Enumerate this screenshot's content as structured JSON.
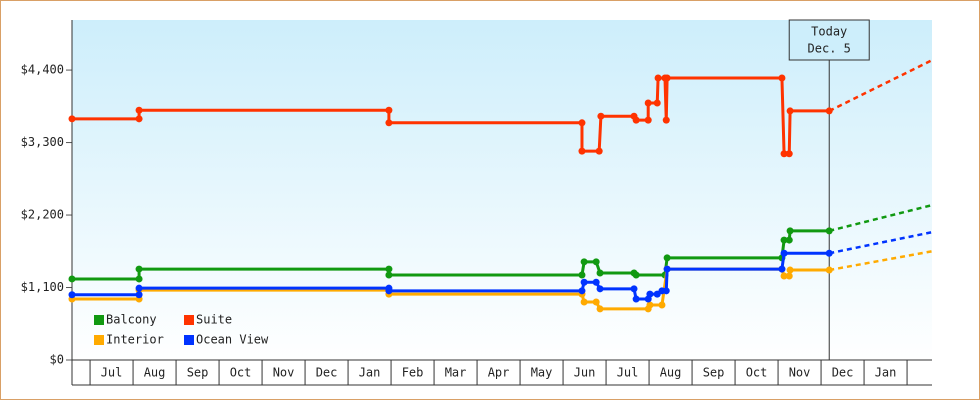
{
  "chart_data": {
    "type": "line",
    "step": true,
    "legend": "lower left",
    "background": [
      "#cdeefb",
      "#ffffff"
    ],
    "xlim": [
      -0.42,
      19.58
    ],
    "ylim": [
      0,
      5160
    ],
    "yticks": [
      {
        "value": 0,
        "label": "$0"
      },
      {
        "value": 1100,
        "label": "$1,100"
      },
      {
        "value": 2200,
        "label": "$2,200"
      },
      {
        "value": 3300,
        "label": "$3,300"
      },
      {
        "value": 4400,
        "label": "$4,400"
      }
    ],
    "xticks": [
      {
        "value": 0.5,
        "label": "Jul"
      },
      {
        "value": 1.5,
        "label": "Aug"
      },
      {
        "value": 2.5,
        "label": "Sep"
      },
      {
        "value": 3.5,
        "label": "Oct"
      },
      {
        "value": 4.5,
        "label": "Nov"
      },
      {
        "value": 5.5,
        "label": "Dec"
      },
      {
        "value": 6.5,
        "label": "Jan"
      },
      {
        "value": 7.5,
        "label": "Feb"
      },
      {
        "value": 8.5,
        "label": "Mar"
      },
      {
        "value": 9.5,
        "label": "Apr"
      },
      {
        "value": 10.5,
        "label": "May"
      },
      {
        "value": 11.5,
        "label": "Jun"
      },
      {
        "value": 12.5,
        "label": "Jul"
      },
      {
        "value": 13.5,
        "label": "Aug"
      },
      {
        "value": 14.5,
        "label": "Sep"
      },
      {
        "value": 15.5,
        "label": "Oct"
      },
      {
        "value": 16.5,
        "label": "Nov"
      },
      {
        "value": 17.5,
        "label": "Dec"
      },
      {
        "value": 18.5,
        "label": "Jan"
      }
    ],
    "annotation": {
      "x": 17.19,
      "lines": [
        "Today",
        "Dec. 5"
      ]
    },
    "series": [
      {
        "name": "Balcony",
        "color": "#119911",
        "x": [
          -0.42,
          1.14,
          1.14,
          6.95,
          6.95,
          11.44,
          11.49,
          11.77,
          11.86,
          12.65,
          12.7,
          13.37,
          13.42,
          16.09,
          16.14,
          16.26,
          16.28,
          17.19
        ],
        "values": [
          1230,
          1230,
          1380,
          1380,
          1290,
          1290,
          1490,
          1490,
          1320,
          1320,
          1290,
          1290,
          1550,
          1550,
          1820,
          1820,
          1960,
          1960
        ],
        "forecast": {
          "x": [
            17.19,
            19.58
          ],
          "values": [
            1960,
            2350
          ]
        }
      },
      {
        "name": "Suite",
        "color": "#ff3300",
        "x": [
          -0.42,
          1.14,
          1.14,
          6.95,
          6.95,
          11.44,
          11.44,
          11.84,
          11.88,
          12.65,
          12.7,
          12.98,
          12.98,
          13.19,
          13.21,
          13.37,
          13.4,
          13.42,
          16.09,
          16.14,
          16.26,
          16.28,
          17.19
        ],
        "values": [
          3660,
          3660,
          3790,
          3790,
          3600,
          3600,
          3170,
          3170,
          3700,
          3700,
          3640,
          3640,
          3900,
          3900,
          4280,
          4280,
          3640,
          4280,
          4280,
          3130,
          3130,
          3780,
          3780
        ],
        "forecast": {
          "x": [
            17.19,
            19.58
          ],
          "values": [
            3780,
            4550
          ]
        }
      },
      {
        "name": "Interior",
        "color": "#ffaa00",
        "x": [
          -0.42,
          1.14,
          1.14,
          6.95,
          6.95,
          11.44,
          11.49,
          11.77,
          11.86,
          12.98,
          13.02,
          13.3,
          13.42,
          16.09,
          16.14,
          16.26,
          16.28,
          17.19
        ],
        "values": [
          925,
          925,
          1060,
          1060,
          1000,
          1000,
          880,
          880,
          775,
          775,
          835,
          835,
          1380,
          1380,
          1275,
          1275,
          1365,
          1365
        ],
        "forecast": {
          "x": [
            17.19,
            19.58
          ],
          "values": [
            1365,
            1650
          ]
        }
      },
      {
        "name": "Ocean View",
        "color": "#0033ff",
        "x": [
          -0.42,
          1.14,
          1.14,
          6.95,
          6.95,
          11.44,
          11.49,
          11.77,
          11.86,
          12.65,
          12.7,
          12.98,
          13.02,
          13.19,
          13.3,
          13.4,
          13.42,
          16.09,
          16.14,
          17.19
        ],
        "values": [
          990,
          990,
          1090,
          1090,
          1050,
          1050,
          1180,
          1180,
          1080,
          1080,
          925,
          925,
          1000,
          1000,
          1050,
          1050,
          1380,
          1380,
          1620,
          1620
        ],
        "forecast": {
          "x": [
            17.19,
            19.58
          ],
          "values": [
            1620,
            1940
          ]
        }
      }
    ]
  }
}
